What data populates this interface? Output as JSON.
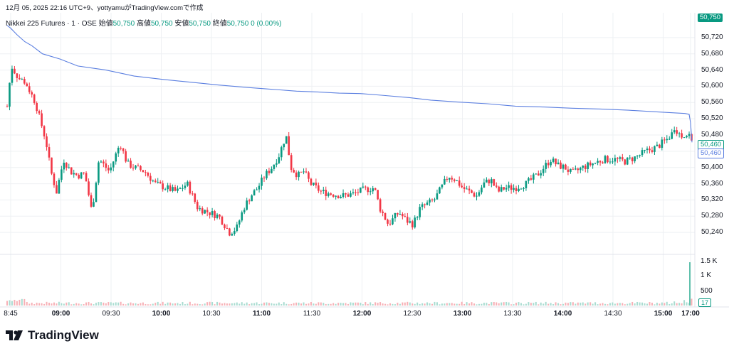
{
  "header": {
    "timestamp_line": "12月 05, 2025 22:16 UTC+9、yottyamuがTradingView.comで作成",
    "symbol": "Nikkei 225 Futures · 1 · OSE",
    "open_label": "始値",
    "open_value": "50,750",
    "high_label": "高値",
    "high_value": "50,750",
    "low_label": "安値",
    "low_value": "50,750",
    "close_label": "終値",
    "close_value": "50,750",
    "change": "0 (0.00%)"
  },
  "price_axis": {
    "ticks": [
      "50,720",
      "50,680",
      "50,640",
      "50,600",
      "50,560",
      "50,520",
      "50,480",
      "50,440",
      "50,400",
      "50,360",
      "50,320",
      "50,280",
      "50,240"
    ],
    "last_price_tag": "50,750",
    "close_tag": "50,460",
    "vwap_tag": "50,460"
  },
  "volume_axis": {
    "ticks": [
      "1.5 K",
      "1 K",
      "500"
    ],
    "last_volume_tag": "17"
  },
  "time_axis": {
    "labels": [
      {
        "text": "8:45",
        "bold": false
      },
      {
        "text": "09:00",
        "bold": true
      },
      {
        "text": "09:30",
        "bold": false
      },
      {
        "text": "10:00",
        "bold": true
      },
      {
        "text": "10:30",
        "bold": false
      },
      {
        "text": "11:00",
        "bold": true
      },
      {
        "text": "11:30",
        "bold": false
      },
      {
        "text": "12:00",
        "bold": true
      },
      {
        "text": "12:30",
        "bold": false
      },
      {
        "text": "13:00",
        "bold": true
      },
      {
        "text": "13:30",
        "bold": false
      },
      {
        "text": "14:00",
        "bold": true
      },
      {
        "text": "14:30",
        "bold": false
      },
      {
        "text": "15:00",
        "bold": true
      },
      {
        "text": "17:00",
        "bold": true
      }
    ]
  },
  "colors": {
    "up": "#089981",
    "down": "#f23645",
    "vwap": "#5b7fe0",
    "grid": "#eef0f3",
    "axis_text": "#131722"
  },
  "chart_data": {
    "type": "candlestick",
    "price_range": [
      50200,
      50760
    ],
    "vwap": [
      [
        0,
        50750
      ],
      [
        5,
        50743
      ],
      [
        14,
        50727
      ],
      [
        25,
        50710
      ],
      [
        35,
        50700
      ],
      [
        50,
        50680
      ],
      [
        75,
        50667
      ],
      [
        100,
        50650
      ],
      [
        140,
        50640
      ],
      [
        180,
        50625
      ],
      [
        220,
        50617
      ],
      [
        260,
        50610
      ],
      [
        300,
        50603
      ],
      [
        340,
        50597
      ],
      [
        380,
        50592
      ],
      [
        410,
        50588
      ],
      [
        440,
        50586
      ],
      [
        470,
        50583
      ],
      [
        500,
        50582
      ],
      [
        530,
        50578
      ],
      [
        570,
        50572
      ],
      [
        600,
        50566
      ],
      [
        640,
        50561
      ],
      [
        680,
        50557
      ],
      [
        720,
        50551
      ],
      [
        760,
        50549
      ],
      [
        800,
        50546
      ],
      [
        840,
        50544
      ],
      [
        880,
        50541
      ],
      [
        920,
        50537
      ],
      [
        960,
        50533
      ],
      [
        966,
        50531
      ],
      [
        968,
        50510
      ],
      [
        970,
        50462
      ]
    ],
    "candle_anchors": [
      [
        0,
        50550
      ],
      [
        6,
        50650
      ],
      [
        16,
        50620
      ],
      [
        26,
        50610
      ],
      [
        40,
        50560
      ],
      [
        55,
        50465
      ],
      [
        62,
        50390
      ],
      [
        70,
        50340
      ],
      [
        80,
        50420
      ],
      [
        90,
        50390
      ],
      [
        100,
        50380
      ],
      [
        110,
        50385
      ],
      [
        120,
        50290
      ],
      [
        130,
        50420
      ],
      [
        145,
        50390
      ],
      [
        160,
        50460
      ],
      [
        170,
        50410
      ],
      [
        180,
        50400
      ],
      [
        195,
        50390
      ],
      [
        210,
        50360
      ],
      [
        225,
        50350
      ],
      [
        240,
        50340
      ],
      [
        255,
        50360
      ],
      [
        270,
        50300
      ],
      [
        285,
        50290
      ],
      [
        300,
        50280
      ],
      [
        315,
        50240
      ],
      [
        325,
        50250
      ],
      [
        335,
        50300
      ],
      [
        345,
        50330
      ],
      [
        355,
        50350
      ],
      [
        365,
        50380
      ],
      [
        375,
        50400
      ],
      [
        385,
        50430
      ],
      [
        395,
        50480
      ],
      [
        402,
        50400
      ],
      [
        412,
        50380
      ],
      [
        420,
        50390
      ],
      [
        430,
        50360
      ],
      [
        445,
        50340
      ],
      [
        460,
        50335
      ],
      [
        475,
        50330
      ],
      [
        490,
        50335
      ],
      [
        505,
        50345
      ],
      [
        520,
        50350
      ],
      [
        528,
        50300
      ],
      [
        540,
        50260
      ],
      [
        555,
        50290
      ],
      [
        565,
        50270
      ],
      [
        575,
        50260
      ],
      [
        585,
        50300
      ],
      [
        595,
        50310
      ],
      [
        605,
        50320
      ],
      [
        615,
        50350
      ],
      [
        625,
        50380
      ],
      [
        635,
        50370
      ],
      [
        645,
        50350
      ],
      [
        655,
        50340
      ],
      [
        665,
        50330
      ],
      [
        675,
        50360
      ],
      [
        685,
        50370
      ],
      [
        695,
        50340
      ],
      [
        705,
        50350
      ],
      [
        720,
        50350
      ],
      [
        735,
        50360
      ],
      [
        750,
        50380
      ],
      [
        760,
        50400
      ],
      [
        770,
        50420
      ],
      [
        780,
        50405
      ],
      [
        790,
        50400
      ],
      [
        800,
        50385
      ],
      [
        815,
        50400
      ],
      [
        830,
        50410
      ],
      [
        845,
        50420
      ],
      [
        860,
        50420
      ],
      [
        875,
        50415
      ],
      [
        890,
        50425
      ],
      [
        905,
        50440
      ],
      [
        920,
        50450
      ],
      [
        935,
        50470
      ],
      [
        945,
        50490
      ],
      [
        955,
        50480
      ],
      [
        966,
        50480
      ],
      [
        970,
        50460
      ]
    ],
    "volume_max": 1600
  }
}
